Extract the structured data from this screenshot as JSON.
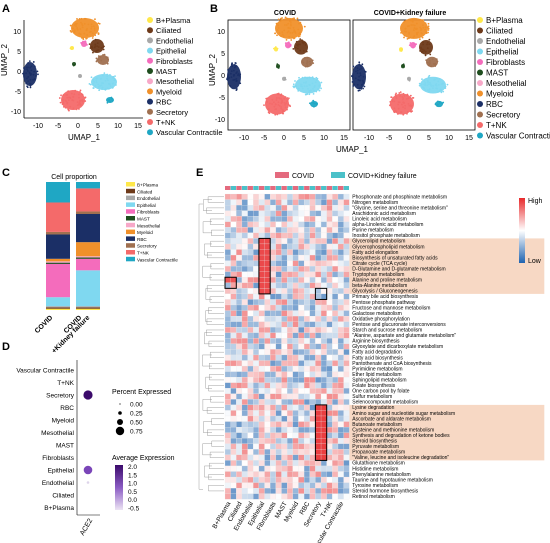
{
  "panel_labels": {
    "A": "A",
    "B": "B",
    "C": "C",
    "D": "D",
    "E": "E"
  },
  "colors": {
    "cell_types": {
      "B+Plasma": "#ffe84a",
      "Ciliated": "#6e3a1a",
      "Endothelial": "#a8a8a8",
      "Epithelial": "#7fd8f0",
      "Fibroblasts": "#f46cbc",
      "MAST": "#1e4d1e",
      "Mesothelial": "#f7a8c8",
      "Myeloid": "#f0902a",
      "RBC": "#1b2f66",
      "Secretory": "#a07050",
      "T+NK": "#f46a6a",
      "Vascular Contractile": "#1fa7c4"
    },
    "heat_high": "#e8292b",
    "heat_low": "#1e63b0",
    "heat_mid": "#ffffff",
    "group_covid": "#e46a7e",
    "group_kf": "#4bc1c9",
    "highlight": "#f7d8c4"
  },
  "legend_items": [
    "B+Plasma",
    "Ciliated",
    "Endothelial",
    "Epithelial",
    "Fibroblasts",
    "MAST",
    "Mesothelial",
    "Myeloid",
    "RBC",
    "Secretory",
    "T+NK",
    "Vascular Contractile"
  ],
  "panelA": {
    "xlabel": "UMAP_1",
    "ylabel": "UMAP_2",
    "xticks": [
      "-10",
      "-5",
      "0",
      "5",
      "10",
      "15"
    ],
    "yticks": [
      "10",
      "5",
      "0",
      "-5",
      "-10"
    ]
  },
  "panelB": {
    "title_left": "COVID",
    "title_right": "COVID+Kidney failure",
    "xlabel": "UMAP_1",
    "ylabel": "UMAP_2",
    "xticks": [
      "-10",
      "-5",
      "0",
      "5",
      "10",
      "15"
    ],
    "yticks": [
      "10",
      "5",
      "0",
      "-5",
      "-10"
    ]
  },
  "panelC": {
    "title": "Cell proportion",
    "groups": [
      "COVID",
      "COVID\n+Kidney failure"
    ],
    "group_labels": [
      "COVID",
      "COVID",
      "+Kidney failure"
    ],
    "chart_data": {
      "type": "bar",
      "stacked": true,
      "categories": [
        "COVID",
        "COVID+Kidney failure"
      ],
      "series": [
        {
          "name": "B+Plasma",
          "values": [
            0.01,
            0.01
          ]
        },
        {
          "name": "Ciliated",
          "values": [
            0.01,
            0.01
          ]
        },
        {
          "name": "Endothelial",
          "values": [
            0.01,
            0.01
          ]
        },
        {
          "name": "Epithelial",
          "values": [
            0.07,
            0.28
          ]
        },
        {
          "name": "Fibroblasts",
          "values": [
            0.26,
            0.09
          ]
        },
        {
          "name": "MAST",
          "values": [
            0.01,
            0.01
          ]
        },
        {
          "name": "Mesothelial",
          "values": [
            0.01,
            0.01
          ]
        },
        {
          "name": "Myeloid",
          "values": [
            0.02,
            0.11
          ]
        },
        {
          "name": "RBC",
          "values": [
            0.19,
            0.22
          ]
        },
        {
          "name": "Secretory",
          "values": [
            0.02,
            0.02
          ]
        },
        {
          "name": "T+NK",
          "values": [
            0.23,
            0.18
          ]
        },
        {
          "name": "Vascular Contractile",
          "values": [
            0.16,
            0.05
          ]
        }
      ]
    }
  },
  "panelD": {
    "xlabel": "ACE2",
    "rows": [
      "Vascular Contractile",
      "T+NK",
      "Secretory",
      "RBC",
      "Myeloid",
      "Mesothelial",
      "MAST",
      "Fibroblasts",
      "Epithelial",
      "Endothelial",
      "Ciliated",
      "B+Plasma"
    ],
    "size_title": "Percent Expressed",
    "size_items": [
      "0.00",
      "0.25",
      "0.50",
      "0.75"
    ],
    "color_title": "Average Expression",
    "color_ticks": [
      "2.0",
      "1.5",
      "1.0",
      "0.5",
      "0.0",
      "-0.5"
    ],
    "chart_data": {
      "type": "scatter",
      "gene": "ACE2",
      "points": [
        {
          "row": "Secretory",
          "pct": 0.6,
          "avg": 2.0
        },
        {
          "row": "Epithelial",
          "pct": 0.55,
          "avg": 1.3
        },
        {
          "row": "Endothelial",
          "pct": 0.05,
          "avg": -0.3
        }
      ]
    }
  },
  "panelE": {
    "legend_covid": "COVID",
    "legend_kf": "COVID+Kidney failure",
    "scale_high": "High",
    "scale_low": "Low",
    "columns": [
      "B+Plasma",
      "Ciliated",
      "Endothelial",
      "Epithelial",
      "Fibroblasts",
      "MAST",
      "Myeloid",
      "RBC",
      "Secretory",
      "T+NK",
      "Vascular Contractile"
    ],
    "rows": [
      "Phosphonate and phosphinate metabolism",
      "Nitrogen metabolism",
      "\"Glycine, serine and threonine metabolism\"",
      "Arachidonic acid metabolism",
      "Linoleic acid metabolism",
      "alpha-Linolenic acid metabolism",
      "Purine metabolism",
      "Inositol phosphate metabolism",
      "Glycerolipid metabolism",
      "Glycerophospholipid metabolism",
      "Fatty acid elongation",
      "Biosynthesis of unsaturated fatty acids",
      "Citrate cycle (TCA cycle)",
      "D-Glutamine and D-glutamate metabolism",
      "Tryptophan metabolism",
      "Alanine and proline metabolism",
      "beta-Alanine metabolism",
      "Glycolysis / Gluconeogenesis",
      "Primary bile acid biosynthesis",
      "Pentose phosphate pathway",
      "Fructose and mannose metabolism",
      "Galactose metabolism",
      "Oxidative phosphorylation",
      "Pentose and glucuronate interconversions",
      "Starch and sucrose metabolism",
      "\"Alanine, aspartate and glutamate metabolism\"",
      "Arginine biosynthesis",
      "Glyoxylate and dicarboxylate metabolism",
      "Fatty acid degradation",
      "Fatty acid biosynthesis",
      "Pantothenate and CoA biosynthesis",
      "Pyrimidine metabolism",
      "Ether lipid metabolism",
      "Sphingolipid metabolism",
      "Folate biosynthesis",
      "One carbon pool by folate",
      "Sulfur metabolism",
      "Selenocompound metabolism",
      "Lysine degradation",
      "Amino sugar and nucleotide sugar metabolism",
      "Ascorbate and aldarate metabolism",
      "Butanoate metabolism",
      "Cysteine and methionine metabolism",
      "Synthesis and degradation of ketone bodies",
      "Steroid biosynthesis",
      "Pyruvate metabolism",
      "Propanoate metabolism",
      "\"Valine, leucine and isoleucine degradation\"",
      "Glutathione metabolism",
      "Histidine metabolism",
      "Phenylalanine metabolism",
      "Taurine and hypotaurine metabolism",
      "Tyrosine metabolism",
      "Steroid hormone biosynthesis",
      "Retinol metabolism"
    ],
    "highlight_blocks": [
      [
        8,
        17
      ],
      [
        38,
        47
      ]
    ]
  }
}
